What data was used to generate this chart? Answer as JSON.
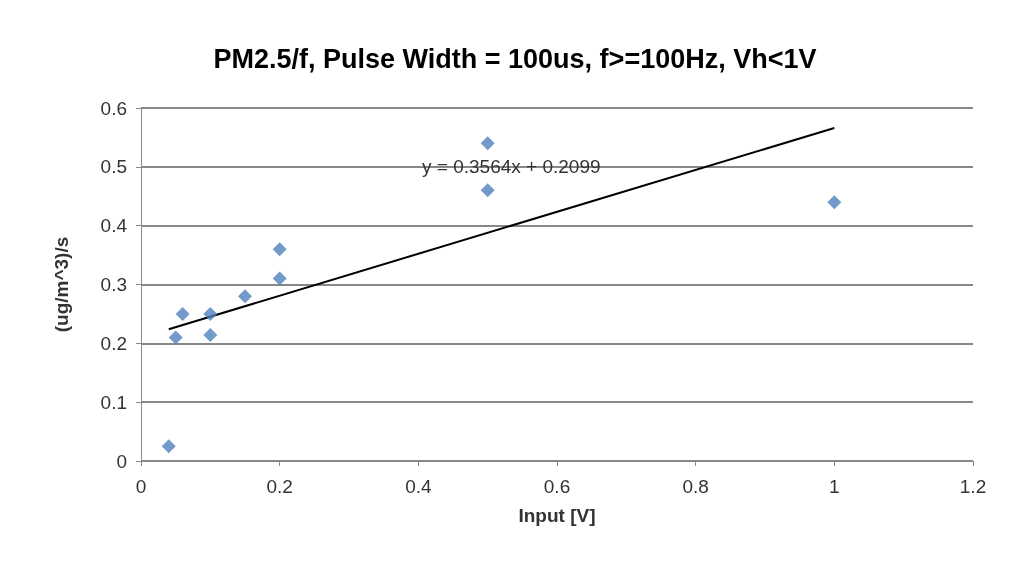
{
  "chart_data": {
    "type": "scatter",
    "title": "PM2.5/f, Pulse Width = 100us, f>=100Hz, Vh<1V",
    "xlabel": "Input [V]",
    "ylabel": "(ug/m^3)/s",
    "xlim": [
      0,
      1.2
    ],
    "xticks": [
      0,
      0.2,
      0.4,
      0.6,
      0.8,
      1,
      1.2
    ],
    "ylim": [
      0,
      0.6
    ],
    "yticks": [
      0,
      0.1,
      0.2,
      0.3,
      0.4,
      0.5,
      0.6
    ],
    "grid": "y",
    "marker": "diamond",
    "series": [
      {
        "color": "#4f81bd",
        "x": [
          0.04,
          0.05,
          0.06,
          0.1,
          0.1,
          0.15,
          0.2,
          0.2,
          0.5,
          0.5,
          1.0
        ],
        "values": [
          0.025,
          0.21,
          0.25,
          0.25,
          0.214,
          0.28,
          0.36,
          0.31,
          0.54,
          0.46,
          0.44
        ]
      },
      {
        "type": "line",
        "color": "#000000",
        "marker": "none",
        "x": [
          0.04,
          1.0
        ],
        "values": [
          0.224,
          0.566
        ]
      }
    ],
    "annotations": [
      "y = 0.3564x + 0.2099"
    ]
  }
}
